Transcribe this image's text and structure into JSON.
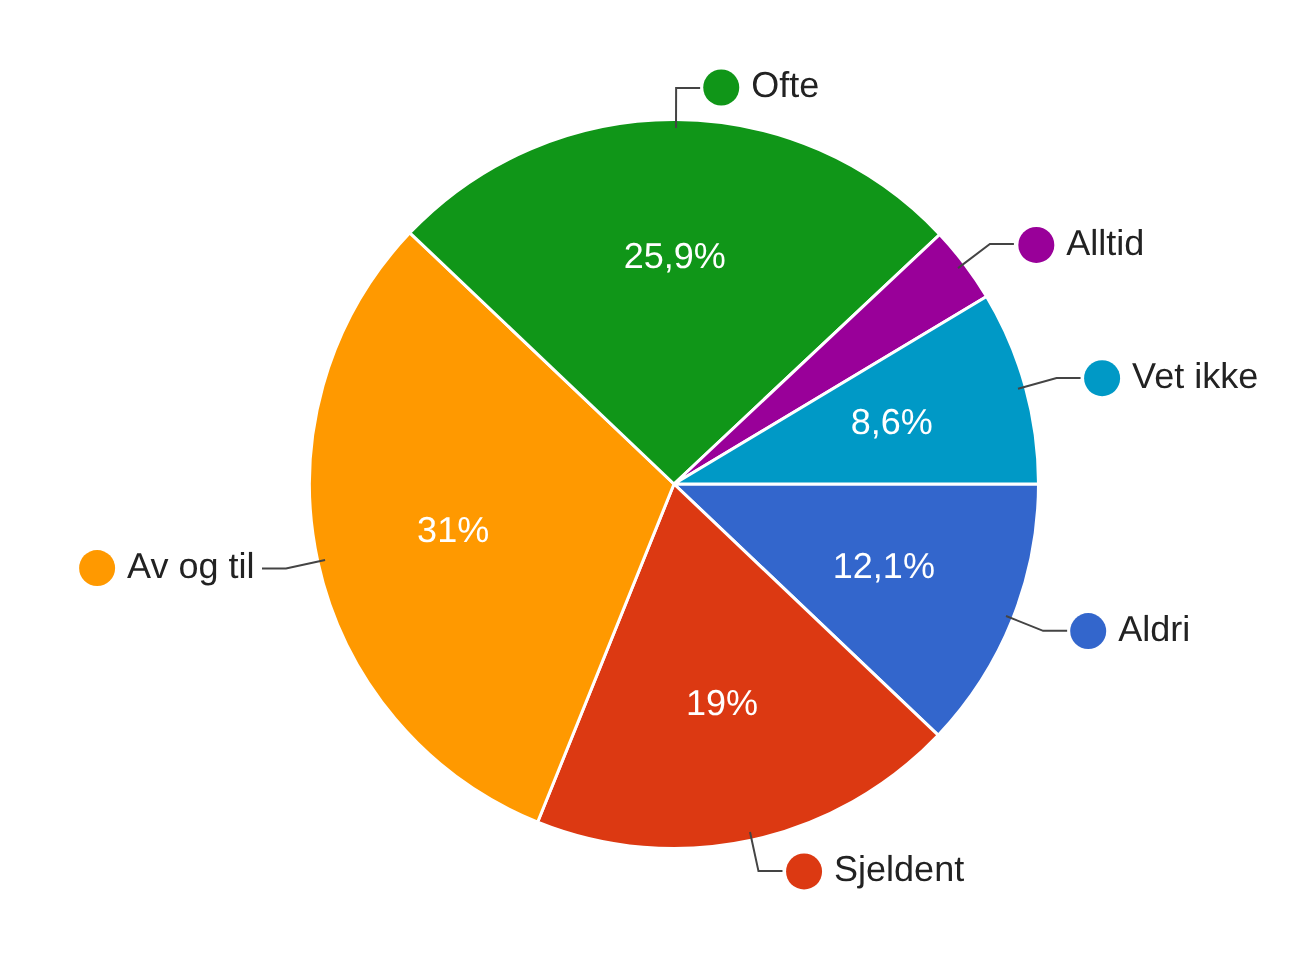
{
  "chart_data": {
    "type": "pie",
    "categories": [
      "Aldri",
      "Sjeldent",
      "Av og til",
      "Ofte",
      "Alltid",
      "Vet ikke"
    ],
    "values": [
      12.1,
      19,
      31,
      25.9,
      3.4,
      8.6
    ],
    "colors": [
      "#3366cc",
      "#dc3912",
      "#ff9900",
      "#109618",
      "#990099",
      "#0099c6"
    ],
    "value_labels": [
      "12,1%",
      "19%",
      "31%",
      "25,9%",
      null,
      "8,6%"
    ],
    "legend": "right"
  }
}
